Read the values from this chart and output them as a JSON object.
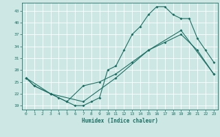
{
  "xlabel": "Humidex (Indice chaleur)",
  "bg_color": "#cde8e4",
  "grid_color": "#ffffff",
  "line_color": "#1a6e62",
  "xlim": [
    -0.5,
    23.5
  ],
  "ylim": [
    18,
    45
  ],
  "xticks": [
    0,
    1,
    2,
    3,
    4,
    5,
    6,
    7,
    8,
    9,
    10,
    11,
    12,
    13,
    14,
    15,
    16,
    17,
    18,
    19,
    20,
    21,
    22,
    23
  ],
  "yticks": [
    19,
    22,
    25,
    28,
    31,
    34,
    37,
    40,
    43
  ],
  "line1_x": [
    0,
    1,
    3,
    4,
    5,
    6,
    7,
    8,
    9,
    10,
    11,
    12,
    13,
    14,
    15,
    16,
    17,
    18,
    19,
    20,
    21,
    22,
    23
  ],
  "line1_y": [
    26,
    24,
    22,
    21,
    20,
    19,
    19,
    20,
    21,
    28,
    29,
    33,
    37,
    39,
    42,
    44,
    44,
    42,
    41,
    41,
    36,
    33,
    30
  ],
  "line2_x": [
    0,
    1,
    3,
    5,
    7,
    9,
    11,
    13,
    15,
    17,
    19,
    21,
    23
  ],
  "line2_y": [
    26,
    24,
    22,
    20,
    24,
    25,
    27,
    30,
    33,
    35,
    37,
    33,
    27
  ],
  "line3_x": [
    0,
    3,
    7,
    11,
    15,
    19,
    23
  ],
  "line3_y": [
    26,
    22,
    20,
    26,
    33,
    38,
    27
  ]
}
